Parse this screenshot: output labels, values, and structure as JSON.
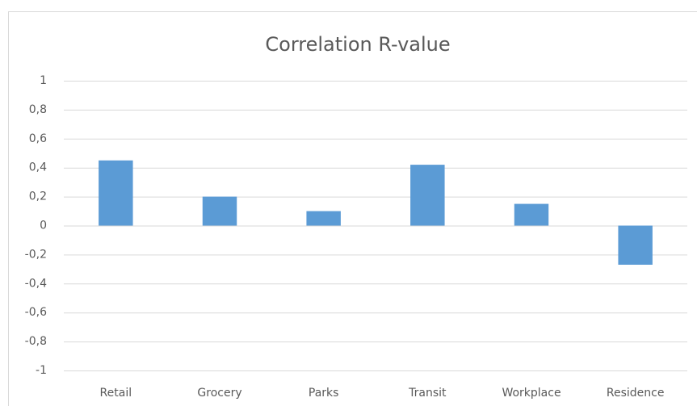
{
  "chart_data": {
    "type": "bar",
    "title": "Correlation R-value",
    "categories": [
      "Retail",
      "Grocery",
      "Parks",
      "Transit",
      "Workplace",
      "Residence"
    ],
    "values": [
      0.45,
      0.2,
      0.1,
      0.42,
      0.15,
      -0.27
    ],
    "color": "#5b9bd5",
    "ylim": [
      -1,
      1
    ],
    "yticks": [
      1,
      {
        "value": 0.8,
        "label": "0,8"
      },
      {
        "value": 0.6,
        "label": "0,6"
      },
      {
        "value": 0.4,
        "label": "0,4"
      },
      {
        "value": 0.2,
        "label": "0,2"
      },
      0,
      {
        "value": -0.2,
        "label": "-0,2"
      },
      {
        "value": -0.4,
        "label": "-0,4"
      },
      {
        "value": -0.6,
        "label": "-0,6"
      },
      {
        "value": -0.8,
        "label": "-0,8"
      },
      -1
    ],
    "grid": true
  }
}
